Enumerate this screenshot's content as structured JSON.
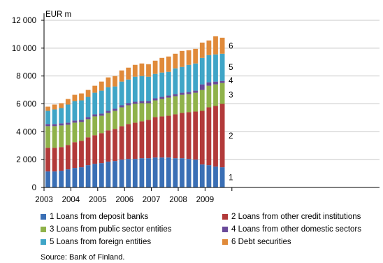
{
  "chart_data": {
    "type": "bar",
    "stacked": true,
    "unit_label": "EUR m",
    "ylim": [
      0,
      12000
    ],
    "yticks": [
      0,
      2000,
      4000,
      6000,
      8000,
      10000,
      12000
    ],
    "ytick_labels": [
      "0",
      "2 000",
      "4 000",
      "6 000",
      "8 000",
      "10 000",
      "12 000"
    ],
    "grid": true,
    "year_labels": [
      "2003",
      "2004",
      "2005",
      "2006",
      "2007",
      "2008",
      "2009"
    ],
    "categories": [
      "2003Q1",
      "2003Q2",
      "2003Q3",
      "2003Q4",
      "2004Q1",
      "2004Q2",
      "2004Q3",
      "2004Q4",
      "2005Q1",
      "2005Q2",
      "2005Q3",
      "2005Q4",
      "2006Q1",
      "2006Q2",
      "2006Q3",
      "2006Q4",
      "2007Q1",
      "2007Q2",
      "2007Q3",
      "2007Q4",
      "2008Q1",
      "2008Q2",
      "2008Q3",
      "2008Q4",
      "2009Q1",
      "2009Q2",
      "2009Q3"
    ],
    "series": [
      {
        "name": "Loans from deposit banks",
        "number": "1",
        "color": "#3a6fb5",
        "values": [
          1150,
          1150,
          1200,
          1300,
          1400,
          1450,
          1600,
          1700,
          1750,
          1850,
          1900,
          2000,
          2050,
          2050,
          2100,
          2100,
          2150,
          2150,
          2150,
          2100,
          2100,
          2050,
          2000,
          1650,
          1600,
          1500,
          1450
        ]
      },
      {
        "name": "Loans from other credit institutions",
        "number": "2",
        "color": "#b23a3a",
        "values": [
          1700,
          1700,
          1700,
          1750,
          1850,
          1900,
          2000,
          2050,
          2150,
          2250,
          2300,
          2400,
          2500,
          2600,
          2650,
          2750,
          2900,
          2950,
          3000,
          3150,
          3250,
          3350,
          3450,
          3850,
          4150,
          4350,
          4550
        ]
      },
      {
        "name": "Loans from public sector entities",
        "number": "3",
        "color": "#8fb24a",
        "values": [
          1550,
          1550,
          1550,
          1450,
          1400,
          1350,
          1300,
          1350,
          1250,
          1250,
          1300,
          1350,
          1350,
          1350,
          1300,
          1200,
          1200,
          1250,
          1300,
          1300,
          1300,
          1300,
          1350,
          1500,
          1550,
          1550,
          1500
        ]
      },
      {
        "name": "Loans from other domestic sectors",
        "number": "4",
        "color": "#6a4a9a",
        "values": [
          150,
          150,
          150,
          150,
          150,
          150,
          150,
          150,
          150,
          150,
          150,
          150,
          150,
          150,
          150,
          150,
          150,
          150,
          150,
          150,
          150,
          150,
          150,
          400,
          250,
          200,
          150
        ]
      },
      {
        "name": "Loans from foreign entities",
        "number": "5",
        "color": "#3fa5c7",
        "values": [
          950,
          1050,
          1100,
          1300,
          1400,
          1400,
          1450,
          1550,
          1650,
          1700,
          1600,
          1700,
          1700,
          1800,
          1800,
          1750,
          1750,
          1750,
          1700,
          1850,
          1850,
          1950,
          1950,
          1900,
          1950,
          1950,
          1950
        ]
      },
      {
        "name": "Debt securities",
        "number": "6",
        "color": "#e08a3a",
        "values": [
          300,
          350,
          350,
          400,
          450,
          500,
          500,
          500,
          650,
          700,
          750,
          800,
          850,
          850,
          900,
          900,
          950,
          1050,
          1100,
          1050,
          1150,
          1050,
          1050,
          1100,
          1050,
          1300,
          1150
        ]
      }
    ]
  },
  "legend": [
    {
      "text": "1  Loans from deposit banks",
      "color": "#3a6fb5"
    },
    {
      "text": "2  Loans from other credit institutions",
      "color": "#b23a3a"
    },
    {
      "text": "3  Loans from public sector entities",
      "color": "#8fb24a"
    },
    {
      "text": "4  Loans from other domestic sectors",
      "color": "#6a4a9a"
    },
    {
      "text": "5  Loans from foreign entities",
      "color": "#3fa5c7"
    },
    {
      "text": "6  Debt securities",
      "color": "#e08a3a"
    }
  ],
  "source": "Source: Bank of Finland."
}
